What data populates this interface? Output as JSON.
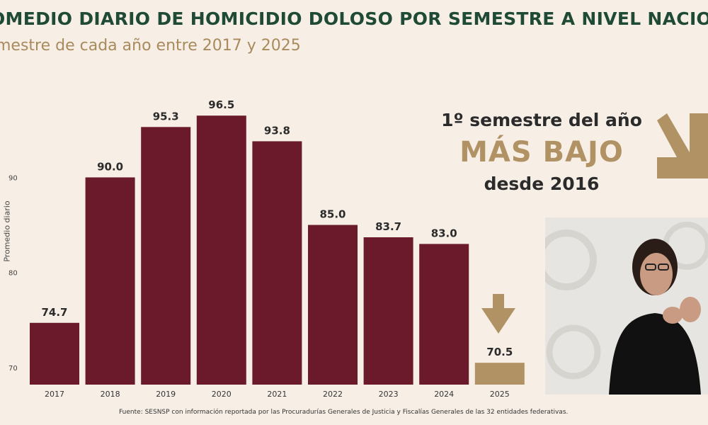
{
  "header": {
    "title": "OMEDIO DIARIO DE HOMICIDIO DOLOSO POR SEMESTRE A NIVEL NACIO",
    "subtitle": "mestre de cada año entre 2017 y 2025"
  },
  "callout": {
    "line1": "1º semestre del año",
    "line2": "MÁS BAJO",
    "line3": "desde 2016"
  },
  "footer": "Fuente: SESNSP con información reportada por las Procuradurías Generales de Justicia y Fiscalías Generales de las 32 entidades federativas.",
  "colors": {
    "bar": "#6b1a2c",
    "highlight_bar": "#b19264",
    "title": "#1f4a35",
    "subtitle": "#a88a5d",
    "background": "#f7efe6"
  },
  "icons": [
    "down-arrow-icon",
    "pointer-arrow-icon"
  ],
  "chart_data": {
    "type": "bar",
    "categories": [
      "2017",
      "2018",
      "2019",
      "2020",
      "2021",
      "2022",
      "2023",
      "2024",
      "2025"
    ],
    "values": [
      74.7,
      90.0,
      95.3,
      96.5,
      93.8,
      85.0,
      83.7,
      83.0,
      70.5
    ],
    "value_labels": [
      "74.7",
      "90.0",
      "95.3",
      "96.5",
      "93.8",
      "85.0",
      "83.7",
      "83.0",
      "70.5"
    ],
    "highlight_index": 8,
    "title": "",
    "xlabel": "",
    "ylabel": "Promedio diario",
    "yticks": [
      "70",
      "80",
      "90"
    ],
    "ylim": [
      68.2,
      100
    ],
    "grid": false
  }
}
